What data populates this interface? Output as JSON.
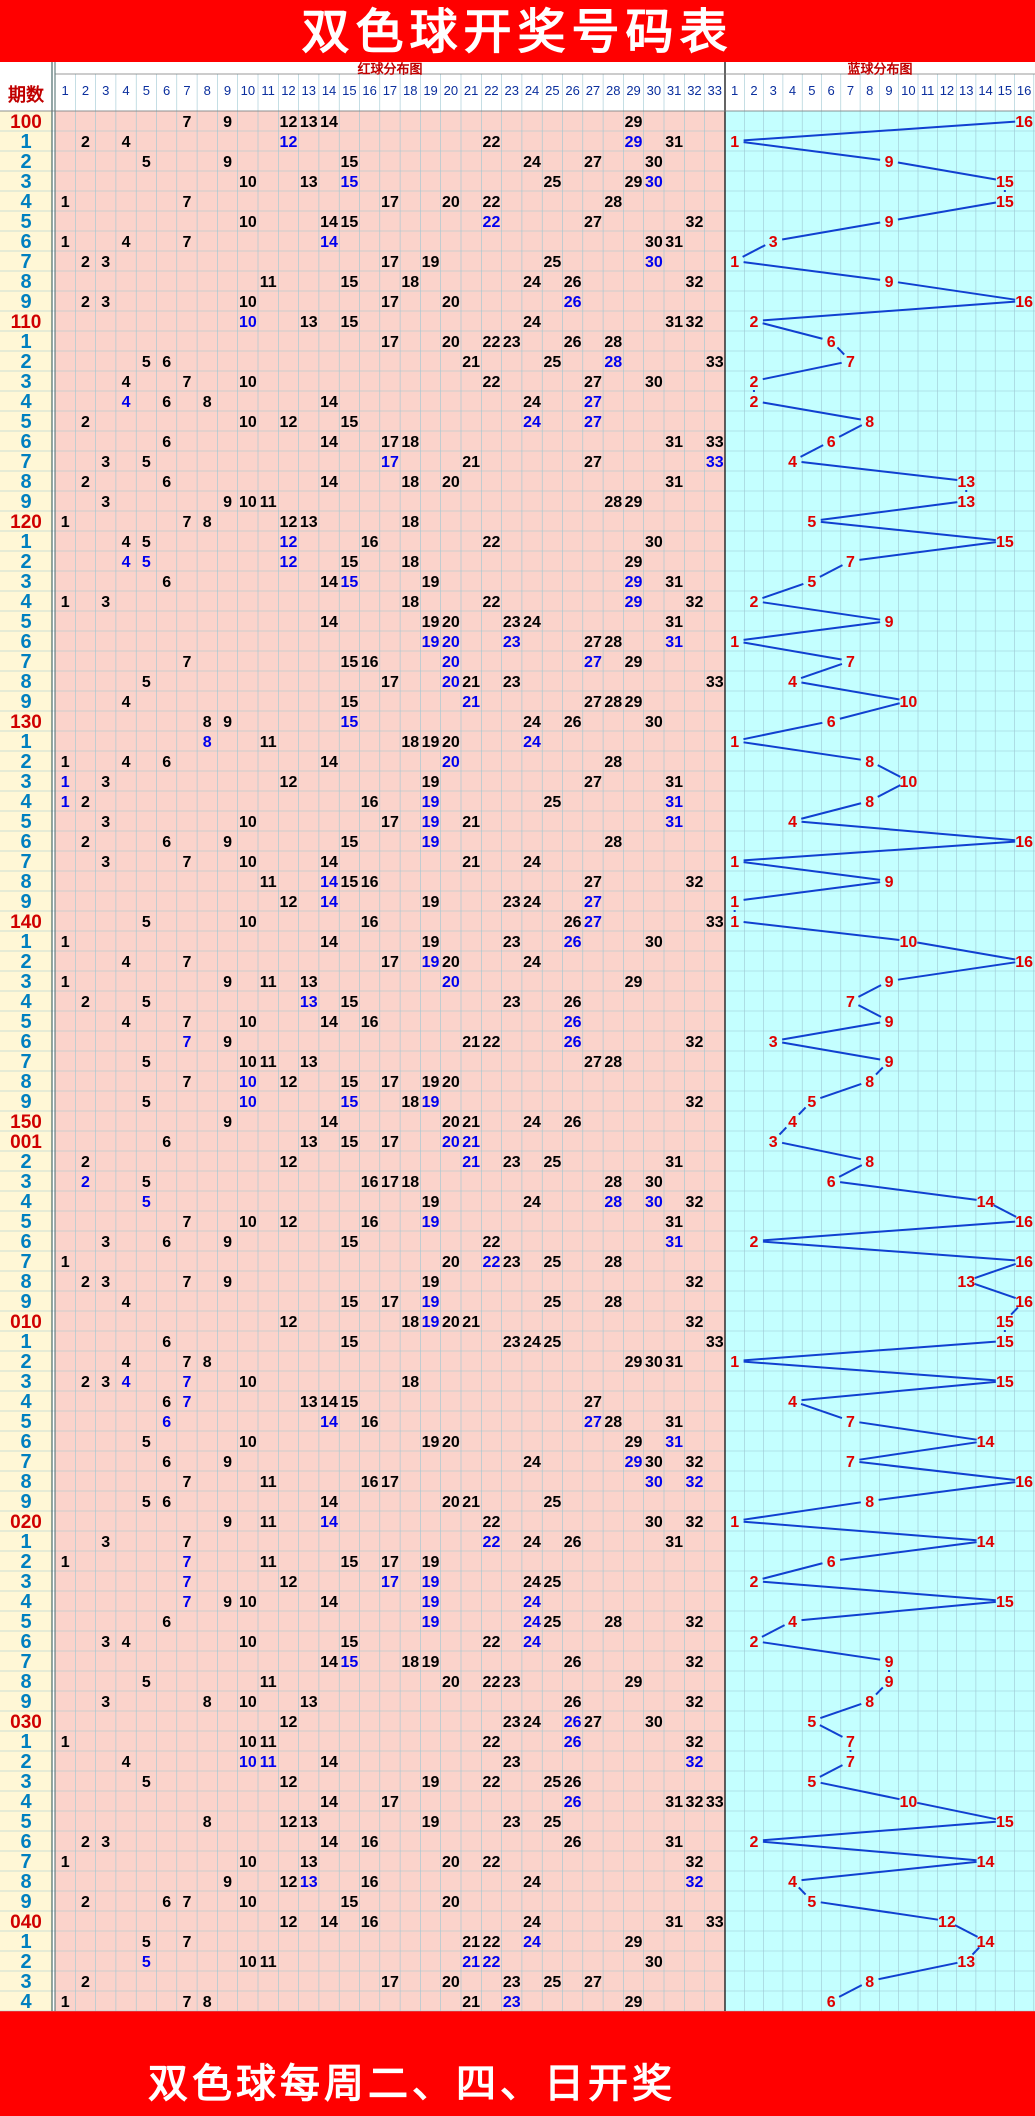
{
  "title": "双色球开奖号码表",
  "footer": "双色球每周二、四、日开奖",
  "colors": {
    "header_red": "#ff0000",
    "red_panel": "#fbd3cb",
    "blue_panel": "#c4ffff",
    "label_col": "#fff7d6",
    "grid": "#9ec7d2",
    "ball_black": "#000000",
    "ball_blue": "#0000ee",
    "blue_ball_red": "#e00000",
    "connector": "#1040d0",
    "issue_red": "#d00000",
    "issue_blue": "#0080c0"
  },
  "chart_data": {
    "type": "table",
    "header": {
      "issue_label": "期数",
      "red_title": "红球分布图",
      "blue_title": "蓝球分布图"
    },
    "red_columns": [
      "1",
      "2",
      "3",
      "4",
      "5",
      "6",
      "7",
      "8",
      "9",
      "10",
      "11",
      "12",
      "13",
      "14",
      "15",
      "16",
      "17",
      "18",
      "19",
      "20",
      "21",
      "22",
      "23",
      "24",
      "25",
      "26",
      "27",
      "28",
      "29",
      "30",
      "31",
      "32",
      "33"
    ],
    "blue_columns": [
      "1",
      "2",
      "3",
      "4",
      "5",
      "6",
      "7",
      "8",
      "9",
      "10",
      "11",
      "12",
      "13",
      "14",
      "15",
      "16"
    ],
    "rows": [
      {
        "issue": "100",
        "red": [
          7,
          9,
          12,
          13,
          14,
          29
        ],
        "blue": 16
      },
      {
        "issue": "1",
        "red": [
          2,
          4,
          12,
          22,
          29,
          31
        ],
        "blue": 1
      },
      {
        "issue": "2",
        "red": [
          5,
          9,
          15,
          24,
          27,
          30
        ],
        "blue": 9
      },
      {
        "issue": "3",
        "red": [
          10,
          13,
          15,
          25,
          29,
          30
        ],
        "blue": 15
      },
      {
        "issue": "4",
        "red": [
          1,
          7,
          17,
          20,
          22,
          28
        ],
        "blue": 15
      },
      {
        "issue": "5",
        "red": [
          10,
          14,
          15,
          22,
          27,
          32
        ],
        "blue": 9
      },
      {
        "issue": "6",
        "red": [
          1,
          4,
          7,
          14,
          30,
          31
        ],
        "blue": 3
      },
      {
        "issue": "7",
        "red": [
          2,
          3,
          17,
          19,
          25,
          30
        ],
        "blue": 1
      },
      {
        "issue": "8",
        "red": [
          11,
          15,
          18,
          24,
          26,
          32
        ],
        "blue": 9
      },
      {
        "issue": "9",
        "red": [
          2,
          3,
          10,
          17,
          20,
          26
        ],
        "blue": 16
      },
      {
        "issue": "110",
        "red": [
          10,
          13,
          15,
          24,
          31,
          32
        ],
        "blue": 2
      },
      {
        "issue": "1",
        "red": [
          17,
          20,
          22,
          23,
          26,
          28
        ],
        "blue": 6
      },
      {
        "issue": "2",
        "red": [
          5,
          6,
          21,
          25,
          28,
          33
        ],
        "blue": 7
      },
      {
        "issue": "3",
        "red": [
          4,
          7,
          10,
          22,
          27,
          30
        ],
        "blue": 2
      },
      {
        "issue": "4",
        "red": [
          4,
          6,
          8,
          14,
          24,
          27
        ],
        "blue": 2
      },
      {
        "issue": "5",
        "red": [
          2,
          10,
          12,
          15,
          24,
          27
        ],
        "blue": 8
      },
      {
        "issue": "6",
        "red": [
          6,
          14,
          17,
          18,
          31,
          33
        ],
        "blue": 6
      },
      {
        "issue": "7",
        "red": [
          3,
          5,
          17,
          21,
          27,
          33
        ],
        "blue": 4
      },
      {
        "issue": "8",
        "red": [
          2,
          6,
          14,
          18,
          20,
          31
        ],
        "blue": 13
      },
      {
        "issue": "9",
        "red": [
          3,
          9,
          10,
          11,
          28,
          29
        ],
        "blue": 13
      },
      {
        "issue": "120",
        "red": [
          1,
          7,
          8,
          12,
          13,
          18
        ],
        "blue": 5
      },
      {
        "issue": "1",
        "red": [
          4,
          5,
          12,
          16,
          22,
          30
        ],
        "blue": 15
      },
      {
        "issue": "2",
        "red": [
          4,
          5,
          12,
          15,
          18,
          29
        ],
        "blue": 7
      },
      {
        "issue": "3",
        "red": [
          6,
          14,
          15,
          19,
          29,
          31
        ],
        "blue": 5
      },
      {
        "issue": "4",
        "red": [
          1,
          3,
          18,
          22,
          29,
          32
        ],
        "blue": 2
      },
      {
        "issue": "5",
        "red": [
          14,
          19,
          20,
          23,
          24,
          31
        ],
        "blue": 9
      },
      {
        "issue": "6",
        "red": [
          19,
          20,
          23,
          27,
          28,
          31
        ],
        "blue": 1
      },
      {
        "issue": "7",
        "red": [
          7,
          15,
          16,
          20,
          27,
          29
        ],
        "blue": 7
      },
      {
        "issue": "8",
        "red": [
          5,
          17,
          20,
          21,
          23,
          33
        ],
        "blue": 4
      },
      {
        "issue": "9",
        "red": [
          4,
          15,
          21,
          27,
          28,
          29
        ],
        "blue": 10
      },
      {
        "issue": "130",
        "red": [
          8,
          9,
          15,
          24,
          26,
          30
        ],
        "blue": 6
      },
      {
        "issue": "1",
        "red": [
          8,
          11,
          18,
          19,
          20,
          24
        ],
        "blue": 1
      },
      {
        "issue": "2",
        "red": [
          1,
          4,
          6,
          14,
          20,
          28
        ],
        "blue": 8
      },
      {
        "issue": "3",
        "red": [
          1,
          3,
          12,
          19,
          27,
          31
        ],
        "blue": 10
      },
      {
        "issue": "4",
        "red": [
          1,
          2,
          16,
          19,
          25,
          31
        ],
        "blue": 8
      },
      {
        "issue": "5",
        "red": [
          3,
          10,
          17,
          19,
          21,
          31
        ],
        "blue": 4
      },
      {
        "issue": "6",
        "red": [
          2,
          6,
          9,
          15,
          19,
          28
        ],
        "blue": 16
      },
      {
        "issue": "7",
        "red": [
          3,
          7,
          10,
          14,
          21,
          24
        ],
        "blue": 1
      },
      {
        "issue": "8",
        "red": [
          11,
          14,
          15,
          16,
          27,
          32
        ],
        "blue": 9
      },
      {
        "issue": "9",
        "red": [
          12,
          14,
          19,
          23,
          24,
          27
        ],
        "blue": 1
      },
      {
        "issue": "140",
        "red": [
          5,
          10,
          16,
          26,
          27,
          33
        ],
        "blue": 1
      },
      {
        "issue": "1",
        "red": [
          1,
          14,
          19,
          23,
          26,
          30
        ],
        "blue": 10
      },
      {
        "issue": "2",
        "red": [
          4,
          7,
          17,
          19,
          20,
          24
        ],
        "blue": 16
      },
      {
        "issue": "3",
        "red": [
          1,
          9,
          11,
          13,
          20,
          29
        ],
        "blue": 9
      },
      {
        "issue": "4",
        "red": [
          2,
          5,
          13,
          15,
          23,
          26
        ],
        "blue": 7
      },
      {
        "issue": "5",
        "red": [
          4,
          7,
          10,
          14,
          16,
          26
        ],
        "blue": 9
      },
      {
        "issue": "6",
        "red": [
          7,
          9,
          21,
          22,
          26,
          32
        ],
        "blue": 3
      },
      {
        "issue": "7",
        "red": [
          5,
          10,
          11,
          13,
          27,
          28
        ],
        "blue": 9
      },
      {
        "issue": "8",
        "red": [
          7,
          10,
          12,
          15,
          17,
          19,
          20
        ],
        "blue": 8
      },
      {
        "issue": "9",
        "red": [
          5,
          10,
          15,
          18,
          19,
          32
        ],
        "blue": 5
      },
      {
        "issue": "150",
        "red": [
          9,
          14,
          20,
          21,
          24,
          26
        ],
        "blue": 4
      },
      {
        "issue": "001",
        "red": [
          6,
          13,
          15,
          17,
          20,
          21
        ],
        "blue": 3
      },
      {
        "issue": "2",
        "red": [
          2,
          12,
          21,
          23,
          25,
          31
        ],
        "blue": 8
      },
      {
        "issue": "3",
        "red": [
          2,
          5,
          16,
          17,
          18,
          28,
          30
        ],
        "blue": 6
      },
      {
        "issue": "4",
        "red": [
          5,
          19,
          24,
          28,
          30,
          32
        ],
        "blue": 14
      },
      {
        "issue": "5",
        "red": [
          7,
          10,
          12,
          16,
          19,
          31
        ],
        "blue": 16
      },
      {
        "issue": "6",
        "red": [
          3,
          6,
          9,
          15,
          22,
          31
        ],
        "blue": 2
      },
      {
        "issue": "7",
        "red": [
          1,
          20,
          22,
          23,
          25,
          28
        ],
        "blue": 16
      },
      {
        "issue": "8",
        "red": [
          2,
          3,
          7,
          9,
          19,
          32
        ],
        "blue": 13
      },
      {
        "issue": "9",
        "red": [
          4,
          15,
          17,
          19,
          25,
          28
        ],
        "blue": 16
      },
      {
        "issue": "010",
        "red": [
          12,
          18,
          19,
          20,
          21,
          32
        ],
        "blue": 15
      },
      {
        "issue": "1",
        "red": [
          6,
          15,
          23,
          24,
          25,
          33
        ],
        "blue": 15
      },
      {
        "issue": "2",
        "red": [
          4,
          7,
          8,
          29,
          30,
          31
        ],
        "blue": 1
      },
      {
        "issue": "3",
        "red": [
          2,
          3,
          4,
          7,
          10,
          18
        ],
        "blue": 15
      },
      {
        "issue": "4",
        "red": [
          6,
          7,
          13,
          14,
          15,
          27
        ],
        "blue": 4
      },
      {
        "issue": "5",
        "red": [
          6,
          14,
          16,
          27,
          28,
          31
        ],
        "blue": 7
      },
      {
        "issue": "6",
        "red": [
          5,
          10,
          19,
          20,
          29,
          31
        ],
        "blue": 14
      },
      {
        "issue": "7",
        "red": [
          6,
          9,
          24,
          29,
          30,
          32
        ],
        "blue": 7
      },
      {
        "issue": "8",
        "red": [
          7,
          11,
          16,
          17,
          30,
          32
        ],
        "blue": 16
      },
      {
        "issue": "9",
        "red": [
          5,
          6,
          14,
          20,
          21,
          25
        ],
        "blue": 8
      },
      {
        "issue": "020",
        "red": [
          9,
          11,
          14,
          22,
          30,
          32
        ],
        "blue": 1
      },
      {
        "issue": "1",
        "red": [
          3,
          7,
          22,
          24,
          26,
          31
        ],
        "blue": 14
      },
      {
        "issue": "2",
        "red": [
          1,
          7,
          11,
          15,
          17,
          19
        ],
        "blue": 6
      },
      {
        "issue": "3",
        "red": [
          7,
          12,
          17,
          19,
          24,
          25
        ],
        "blue": 2
      },
      {
        "issue": "4",
        "red": [
          7,
          9,
          10,
          14,
          19,
          24
        ],
        "blue": 15
      },
      {
        "issue": "5",
        "red": [
          6,
          19,
          24,
          25,
          28,
          32
        ],
        "blue": 4
      },
      {
        "issue": "6",
        "red": [
          3,
          4,
          10,
          15,
          22,
          24
        ],
        "blue": 2
      },
      {
        "issue": "7",
        "red": [
          14,
          15,
          18,
          19,
          26,
          32
        ],
        "blue": 9
      },
      {
        "issue": "8",
        "red": [
          5,
          11,
          20,
          22,
          23,
          29
        ],
        "blue": 9
      },
      {
        "issue": "9",
        "red": [
          3,
          8,
          10,
          13,
          26,
          32
        ],
        "blue": 8
      },
      {
        "issue": "030",
        "red": [
          12,
          23,
          24,
          26,
          27,
          30
        ],
        "blue": 5
      },
      {
        "issue": "1",
        "red": [
          1,
          10,
          11,
          22,
          26,
          32
        ],
        "blue": 7
      },
      {
        "issue": "2",
        "red": [
          4,
          10,
          11,
          14,
          23,
          32
        ],
        "blue": 7
      },
      {
        "issue": "3",
        "red": [
          5,
          12,
          19,
          22,
          25,
          26
        ],
        "blue": 5
      },
      {
        "issue": "4",
        "red": [
          14,
          17,
          26,
          31,
          32,
          33
        ],
        "blue": 10
      },
      {
        "issue": "5",
        "red": [
          8,
          12,
          13,
          19,
          23,
          25
        ],
        "blue": 15
      },
      {
        "issue": "6",
        "red": [
          2,
          3,
          14,
          16,
          26,
          31
        ],
        "blue": 2
      },
      {
        "issue": "7",
        "red": [
          1,
          10,
          13,
          20,
          22,
          32
        ],
        "blue": 14
      },
      {
        "issue": "8",
        "red": [
          9,
          12,
          13,
          16,
          24,
          32
        ],
        "blue": 4
      },
      {
        "issue": "9",
        "red": [
          2,
          6,
          7,
          10,
          15,
          20
        ],
        "blue": 5
      },
      {
        "issue": "040",
        "red": [
          12,
          14,
          16,
          24,
          31,
          33
        ],
        "blue": 12
      },
      {
        "issue": "1",
        "red": [
          5,
          7,
          21,
          22,
          24,
          29
        ],
        "blue": 14
      },
      {
        "issue": "2",
        "red": [
          5,
          10,
          11,
          21,
          22,
          30
        ],
        "blue": 13
      },
      {
        "issue": "3",
        "red": [
          2,
          17,
          20,
          23,
          25,
          27
        ],
        "blue": 8
      },
      {
        "issue": "4",
        "red": [
          1,
          7,
          8,
          21,
          23,
          29
        ],
        "blue": 6
      }
    ]
  }
}
